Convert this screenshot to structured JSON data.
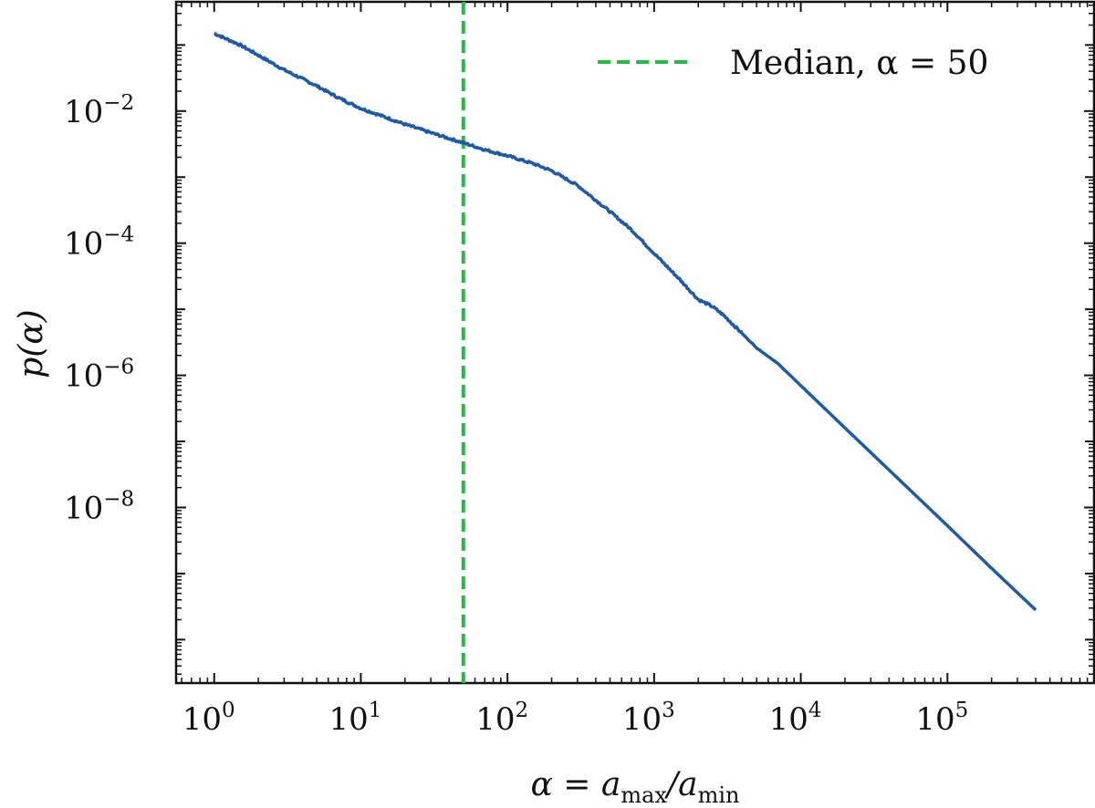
{
  "chart_data": {
    "type": "line",
    "scale": {
      "x": "log10",
      "y": "log10"
    },
    "xlabel": {
      "prefix": "α = a",
      "sub1": "max",
      "mid": "/a",
      "sub2": "min"
    },
    "ylabel": "p(α)",
    "xlim": [
      0.55,
      1000000
    ],
    "ylim": [
      2.2e-11,
      0.45
    ],
    "xticks": [
      {
        "value": 1,
        "base": "10",
        "exp": "0"
      },
      {
        "value": 10,
        "base": "10",
        "exp": "1"
      },
      {
        "value": 100,
        "base": "10",
        "exp": "2"
      },
      {
        "value": 1000,
        "base": "10",
        "exp": "3"
      },
      {
        "value": 10000,
        "base": "10",
        "exp": "4"
      },
      {
        "value": 100000,
        "base": "10",
        "exp": "5"
      }
    ],
    "yticks": [
      {
        "value": 0.01,
        "base": "10",
        "exp": "−2"
      },
      {
        "value": 0.0001,
        "base": "10",
        "exp": "−4"
      },
      {
        "value": 1e-06,
        "base": "10",
        "exp": "−6"
      },
      {
        "value": 1e-08,
        "base": "10",
        "exp": "−8"
      }
    ],
    "series": [
      {
        "name": "p(α)",
        "color": "#1f5aa6",
        "x": [
          1,
          1.5,
          2,
          3,
          5,
          7,
          10,
          20,
          30,
          50,
          70,
          100,
          150,
          200,
          300,
          500,
          700,
          1000,
          1500,
          2000,
          2500,
          3000,
          5000,
          7000,
          10000,
          20000,
          50000,
          100000,
          200000,
          400000
        ],
        "y": [
          0.15,
          0.1,
          0.07,
          0.042,
          0.024,
          0.016,
          0.011,
          0.0063,
          0.0047,
          0.0033,
          0.0026,
          0.0021,
          0.0016,
          0.00125,
          0.00075,
          0.0003,
          0.00016,
          7e-05,
          2.8e-05,
          1.4e-05,
          1.1e-05,
          8e-06,
          2.6e-06,
          1.5e-06,
          7e-07,
          1.6e-07,
          2.3e-08,
          5.3e-09,
          1.2e-09,
          2.8e-10
        ]
      }
    ],
    "median": {
      "value": 50,
      "color": "#22bb44"
    },
    "legend": {
      "label_prefix": "Median, α = ",
      "label_value": "50",
      "position": "top-right"
    }
  }
}
